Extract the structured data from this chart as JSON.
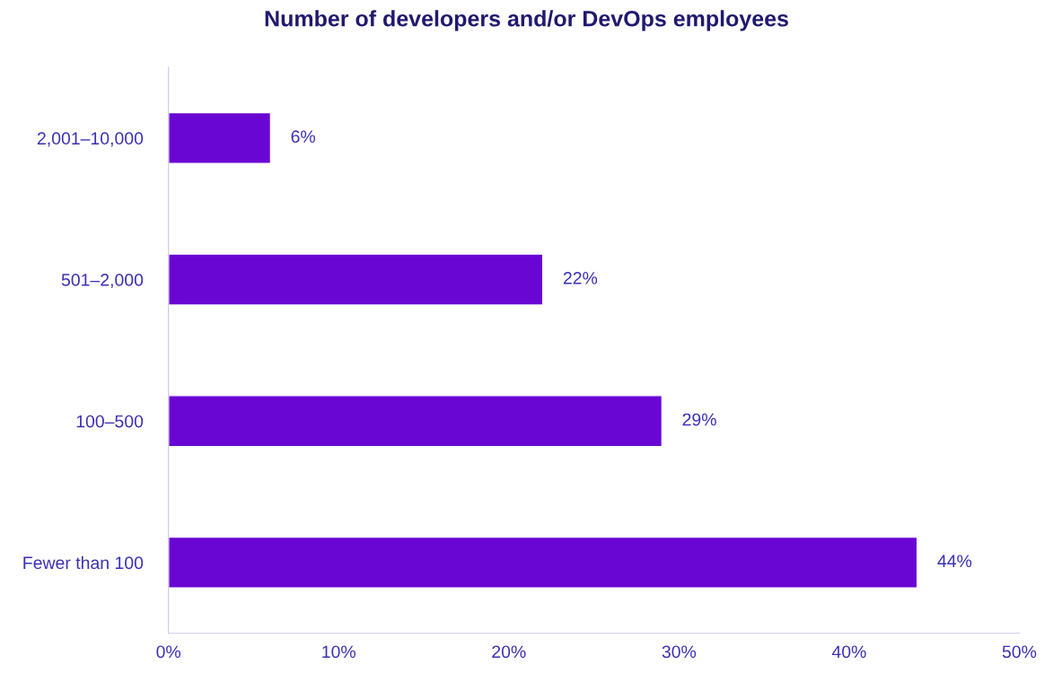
{
  "chart_data": {
    "type": "bar",
    "orientation": "horizontal",
    "title": "Number of developers and/or DevOps employees",
    "categories": [
      "2,001–10,000",
      "501–2,000",
      "100–500",
      "Fewer than 100"
    ],
    "values": [
      6,
      22,
      29,
      44
    ],
    "color": "#6a06d4",
    "xlim": [
      0,
      50
    ],
    "xticks": [
      {
        "value": 0,
        "label": "0%"
      },
      {
        "value": 10,
        "label": "10%"
      },
      {
        "value": 20,
        "label": "20%"
      },
      {
        "value": 30,
        "label": "30%"
      },
      {
        "value": 40,
        "label": "40%"
      },
      {
        "value": 50,
        "label": "50%"
      }
    ],
    "value_labels": [
      "6%",
      "22%",
      "29%",
      "44%"
    ],
    "grid": false,
    "legend": false
  }
}
